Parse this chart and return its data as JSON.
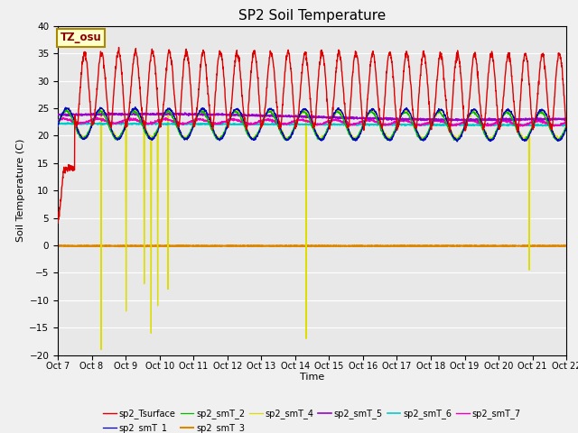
{
  "title": "SP2 Soil Temperature",
  "xlabel": "Time",
  "ylabel": "Soil Temperature (C)",
  "ylim": [
    -20,
    40
  ],
  "xlim": [
    0,
    15
  ],
  "xtick_labels": [
    "Oct 7",
    "Oct 8",
    "Oct 9",
    "Oct 10",
    "Oct 11",
    "Oct 12",
    "Oct 13",
    "Oct 14",
    "Oct 15",
    "Oct 16",
    "Oct 17",
    "Oct 18",
    "Oct 19",
    "Oct 20",
    "Oct 21",
    "Oct 22"
  ],
  "annotation_text": "TZ_osu",
  "annotation_color": "#880000",
  "annotation_bg": "#ffffcc",
  "annotation_border": "#aa8800",
  "series_colors": {
    "sp2_Tsurface": "#dd0000",
    "sp2_smT_1": "#0000cc",
    "sp2_smT_2": "#00bb00",
    "sp2_smT_3": "#dd8800",
    "sp2_smT_4": "#dddd00",
    "sp2_smT_5": "#9900cc",
    "sp2_smT_6": "#00cccc",
    "sp2_smT_7": "#ee00bb"
  },
  "plot_bg": "#e8e8e8",
  "fig_bg": "#f0f0f0",
  "grid_color": "#ffffff",
  "title_fontsize": 11
}
